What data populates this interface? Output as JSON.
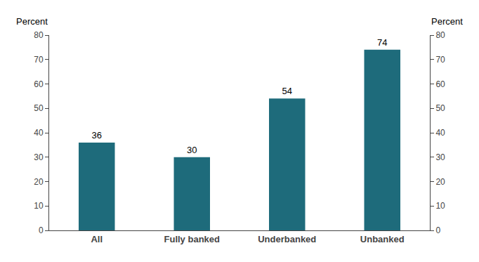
{
  "chart_data": {
    "type": "bar",
    "categories": [
      "All",
      "Fully banked",
      "Underbanked",
      "Unbanked"
    ],
    "values": [
      36,
      30,
      54,
      74
    ],
    "color": "#1e6b7b",
    "ylabel": "Percent",
    "y2label": "Percent",
    "ylim": [
      0,
      80
    ],
    "yticks": [
      0,
      10,
      20,
      30,
      40,
      50,
      60,
      70,
      80
    ],
    "y2lim": [
      0,
      80
    ],
    "y2ticks": [
      0,
      10,
      20,
      30,
      40,
      50,
      60,
      70,
      80
    ],
    "data_labels": true,
    "grid": false
  }
}
